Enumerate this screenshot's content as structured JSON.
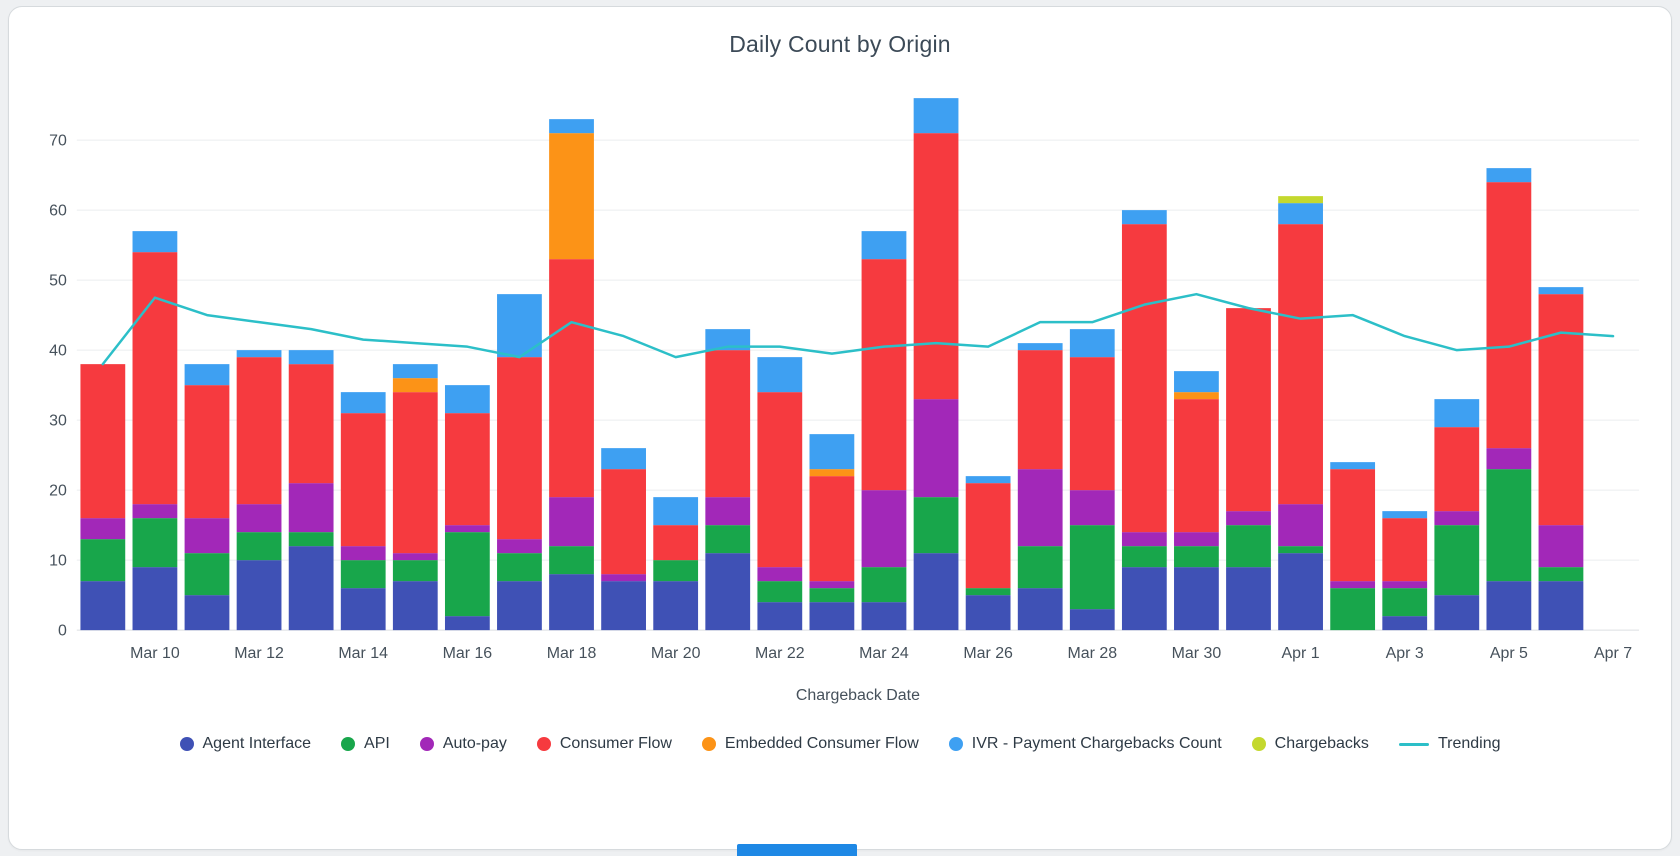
{
  "page": {
    "background": "#eef0f2",
    "card_background": "#ffffff",
    "bottom_strip_color": "#1E88E5"
  },
  "chart_data": {
    "type": "bar",
    "stacked": true,
    "title": "Daily Count by Origin",
    "xlabel": "Chargeback Date",
    "ylabel": "",
    "ylim": [
      0,
      78
    ],
    "yticks": [
      0,
      10,
      20,
      30,
      40,
      50,
      60,
      70
    ],
    "grid": true,
    "legend_position": "bottom",
    "categories": [
      "Mar 9",
      "Mar 10",
      "Mar 11",
      "Mar 12",
      "Mar 13",
      "Mar 14",
      "Mar 15",
      "Mar 16",
      "Mar 17",
      "Mar 18",
      "Mar 19",
      "Mar 20",
      "Mar 21",
      "Mar 22",
      "Mar 23",
      "Mar 24",
      "Mar 25",
      "Mar 26",
      "Mar 27",
      "Mar 28",
      "Mar 29",
      "Mar 30",
      "Mar 31",
      "Apr 1",
      "Apr 2",
      "Apr 3",
      "Apr 4",
      "Apr 5",
      "Apr 6",
      "Apr 7"
    ],
    "xticks": [
      {
        "i": 1,
        "label": "Mar 10"
      },
      {
        "i": 3,
        "label": "Mar 12"
      },
      {
        "i": 5,
        "label": "Mar 14"
      },
      {
        "i": 7,
        "label": "Mar 16"
      },
      {
        "i": 9,
        "label": "Mar 18"
      },
      {
        "i": 11,
        "label": "Mar 20"
      },
      {
        "i": 13,
        "label": "Mar 22"
      },
      {
        "i": 15,
        "label": "Mar 24"
      },
      {
        "i": 17,
        "label": "Mar 26"
      },
      {
        "i": 19,
        "label": "Mar 28"
      },
      {
        "i": 21,
        "label": "Mar 30"
      },
      {
        "i": 23,
        "label": "Apr 1"
      },
      {
        "i": 25,
        "label": "Apr 3"
      },
      {
        "i": 27,
        "label": "Apr 5"
      },
      {
        "i": 29,
        "label": "Apr 7"
      }
    ],
    "series": [
      {
        "name": "Agent Interface",
        "type": "bar",
        "color": "#3F51B5",
        "values": [
          7,
          9,
          5,
          10,
          12,
          6,
          7,
          2,
          7,
          8,
          7,
          7,
          11,
          4,
          4,
          4,
          11,
          5,
          6,
          3,
          9,
          9,
          9,
          11,
          0,
          2,
          5,
          7,
          7,
          0
        ]
      },
      {
        "name": "API",
        "type": "bar",
        "color": "#18A64B",
        "values": [
          6,
          7,
          6,
          4,
          2,
          4,
          3,
          12,
          4,
          4,
          0,
          3,
          4,
          3,
          2,
          5,
          8,
          1,
          6,
          12,
          3,
          3,
          6,
          1,
          6,
          4,
          10,
          16,
          2,
          0
        ]
      },
      {
        "name": "Auto-pay",
        "type": "bar",
        "color": "#A228B8",
        "values": [
          3,
          2,
          5,
          4,
          7,
          2,
          1,
          1,
          2,
          7,
          1,
          0,
          4,
          2,
          1,
          11,
          14,
          0,
          11,
          5,
          2,
          2,
          2,
          6,
          1,
          1,
          2,
          3,
          6,
          0
        ]
      },
      {
        "name": "Consumer Flow",
        "type": "bar",
        "color": "#F63A3F",
        "values": [
          22,
          36,
          19,
          21,
          17,
          19,
          23,
          16,
          26,
          34,
          15,
          5,
          21,
          25,
          15,
          33,
          38,
          15,
          17,
          19,
          44,
          19,
          29,
          40,
          16,
          9,
          12,
          38,
          33,
          0
        ]
      },
      {
        "name": "Embedded Consumer Flow",
        "type": "bar",
        "color": "#FC9317",
        "values": [
          0,
          0,
          0,
          0,
          0,
          0,
          2,
          0,
          0,
          18,
          0,
          0,
          0,
          0,
          1,
          0,
          0,
          0,
          0,
          0,
          0,
          1,
          0,
          0,
          0,
          0,
          0,
          0,
          0,
          0
        ]
      },
      {
        "name": "IVR - Payment Chargebacks Count",
        "type": "bar",
        "color": "#3EA0F2",
        "values": [
          0,
          3,
          3,
          1,
          2,
          3,
          2,
          4,
          9,
          2,
          3,
          4,
          3,
          5,
          5,
          4,
          5,
          1,
          1,
          4,
          2,
          3,
          0,
          3,
          1,
          1,
          4,
          2,
          1,
          0
        ]
      },
      {
        "name": "Chargebacks",
        "type": "bar",
        "color": "#C4D82E",
        "values": [
          0,
          0,
          0,
          0,
          0,
          0,
          0,
          0,
          0,
          0,
          0,
          0,
          0,
          0,
          0,
          0,
          0,
          0,
          0,
          0,
          0,
          0,
          0,
          1,
          0,
          0,
          0,
          0,
          0,
          0
        ]
      },
      {
        "name": "Trending",
        "type": "line",
        "color": "#2CBFC8",
        "values": [
          38,
          47.5,
          45,
          44,
          43,
          41.5,
          41,
          40.5,
          39,
          44,
          42,
          39,
          40.5,
          40.5,
          39.5,
          40.5,
          41,
          40.5,
          44,
          44,
          46.5,
          48,
          46,
          44.5,
          45,
          42,
          40,
          40.5,
          42.5,
          42
        ]
      }
    ]
  }
}
